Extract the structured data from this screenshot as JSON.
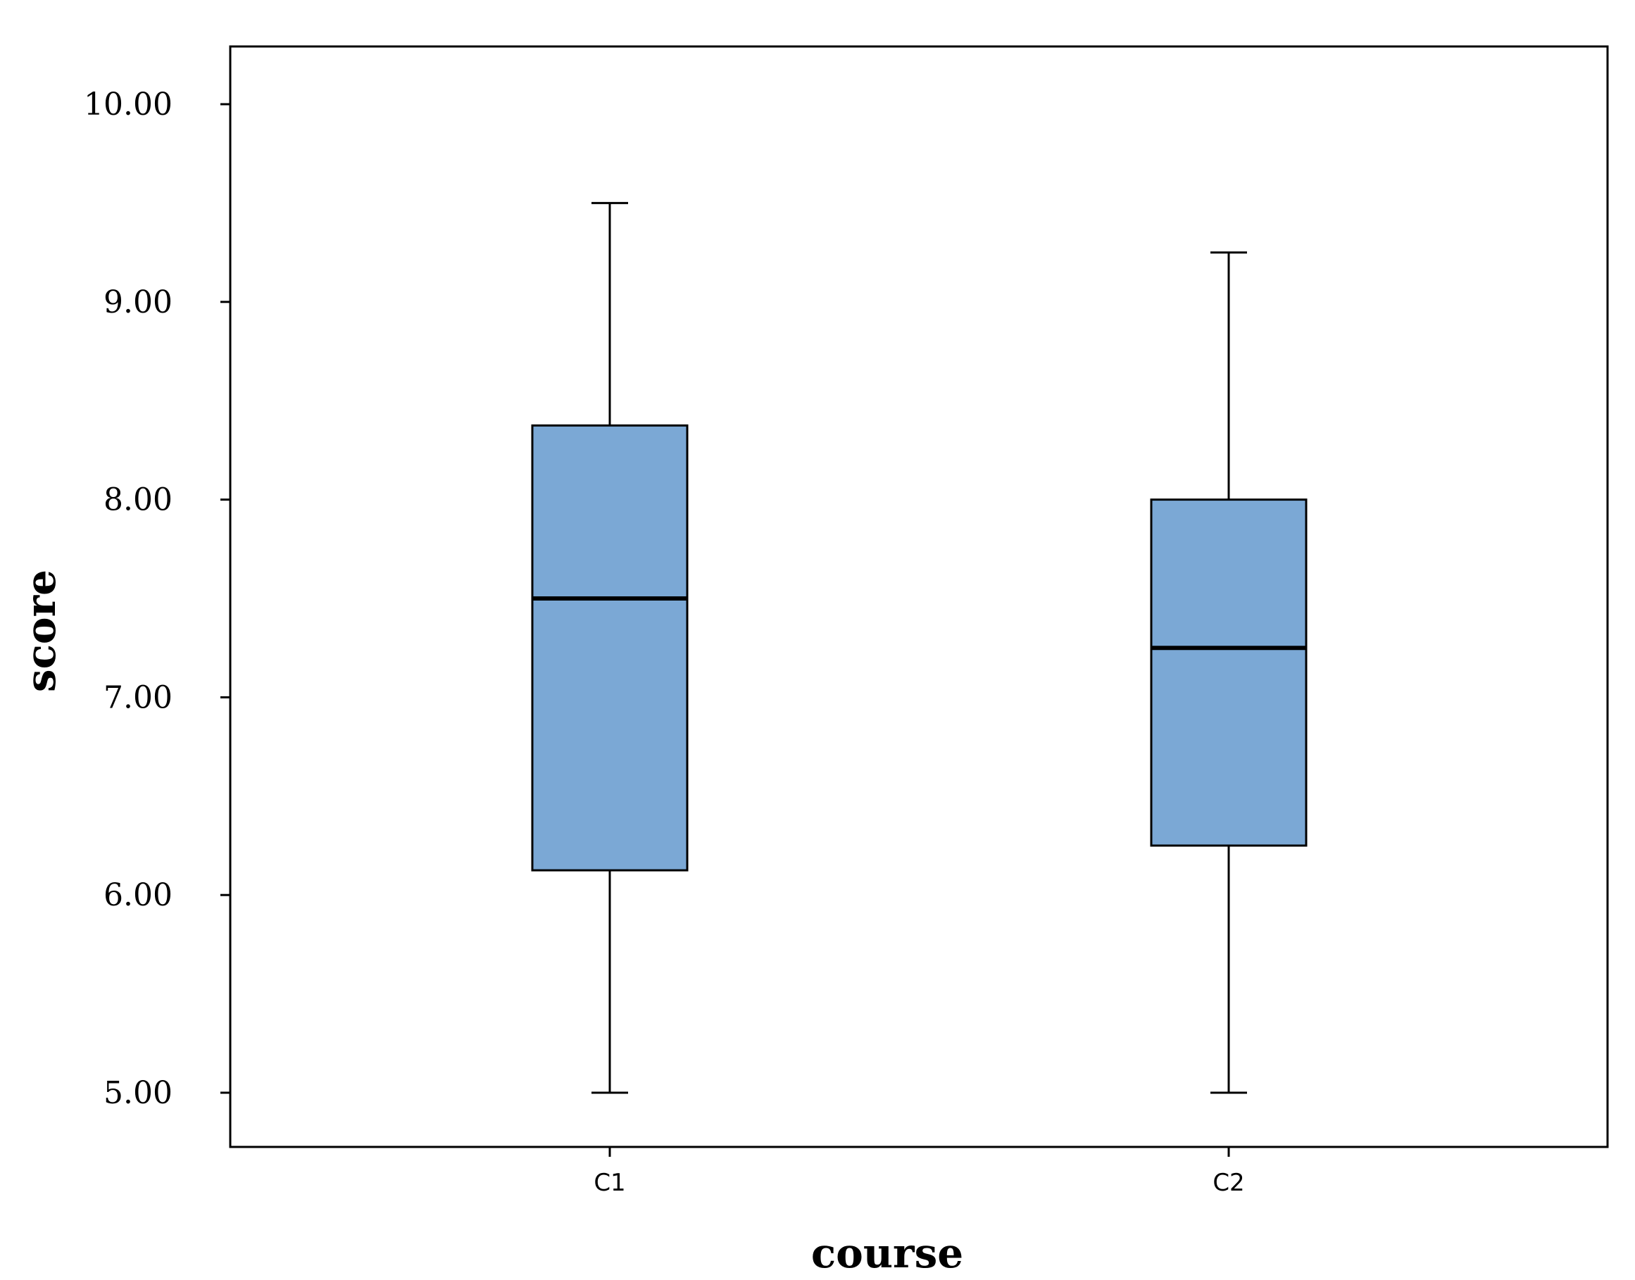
{
  "chart_data": {
    "type": "box",
    "xlabel": "course",
    "ylabel": "score",
    "categories": [
      "C1",
      "C2"
    ],
    "boxes": [
      {
        "category": "C1",
        "min": 5.0,
        "q1": 6.125,
        "median": 7.5,
        "q3": 8.375,
        "max": 9.5
      },
      {
        "category": "C2",
        "min": 5.0,
        "q1": 6.25,
        "median": 7.25,
        "q3": 8.0,
        "max": 9.25
      }
    ],
    "yticks": [
      "5.00",
      "6.00",
      "7.00",
      "8.00",
      "9.00",
      "10.00"
    ],
    "ytick_values": [
      5,
      6,
      7,
      8,
      9,
      10
    ],
    "ylim": [
      4.72,
      10.29
    ],
    "grid": false,
    "colors": {
      "box_fill": "#7BA8D5",
      "stroke": "#000000"
    }
  }
}
